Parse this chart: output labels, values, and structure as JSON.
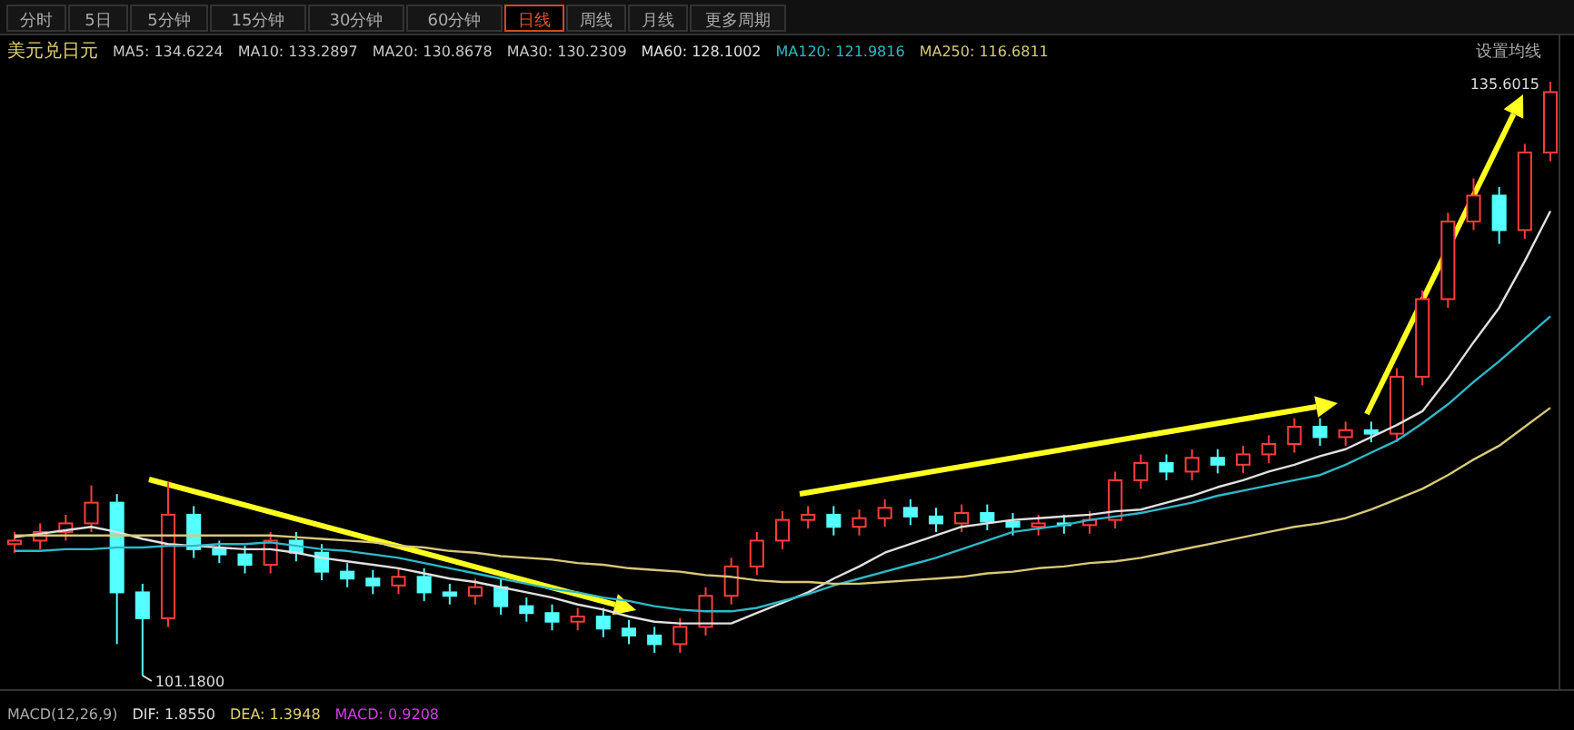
{
  "chart_data": {
    "type": "candlestick",
    "title": "美元兑日元",
    "legend": "top left",
    "annotations": [
      "分时",
      "5日",
      "5分钟",
      "15分钟",
      "30分钟",
      "60分钟",
      "日线",
      "周线",
      "月线",
      "更多周期",
      "MA5: 134.6224",
      "MA10: 133.2897",
      "MA20: 130.8678",
      "MA30: 130.2309",
      "设置均线",
      "MACD(12,26,9)",
      "DIF: 1.8550",
      "DEA: 1.3948",
      "MACD: 0.9208",
      "135.6015",
      "101.1800"
    ],
    "categories": [
      null,
      null,
      null,
      null,
      null,
      null,
      null,
      null,
      null,
      null,
      null,
      null,
      null,
      null,
      null,
      null,
      null,
      null,
      null,
      null,
      null,
      null,
      null,
      null,
      null,
      null,
      null,
      null,
      null,
      null,
      null,
      null,
      null,
      null,
      null,
      null,
      null,
      null,
      null,
      null,
      null,
      null,
      null,
      null,
      null,
      null,
      null,
      null,
      null,
      null,
      null,
      null,
      null,
      null,
      null,
      null,
      null,
      null,
      null,
      null,
      null
    ],
    "ohlc": [
      [
        108.8,
        109.5,
        108.3,
        109.0
      ],
      [
        109.0,
        110.0,
        108.5,
        109.5
      ],
      [
        109.5,
        110.5,
        109.0,
        110.0
      ],
      [
        110.0,
        112.2,
        109.5,
        111.2
      ],
      [
        111.2,
        111.7,
        103.0,
        106.0
      ],
      [
        106.0,
        106.5,
        101.18,
        104.5
      ],
      [
        104.5,
        112.4,
        104.0,
        110.5
      ],
      [
        110.5,
        111.0,
        108.0,
        108.5
      ],
      [
        108.5,
        109.0,
        107.7,
        108.2
      ],
      [
        108.2,
        108.7,
        107.1,
        107.6
      ],
      [
        107.6,
        109.5,
        107.1,
        109.0
      ],
      [
        109.0,
        109.5,
        107.8,
        108.3
      ],
      [
        108.3,
        108.8,
        106.7,
        107.2
      ],
      [
        107.2,
        107.7,
        106.3,
        106.8
      ],
      [
        106.8,
        107.3,
        105.9,
        106.4
      ],
      [
        106.4,
        107.4,
        105.9,
        106.9
      ],
      [
        106.9,
        107.4,
        105.5,
        106.0
      ],
      [
        106.0,
        106.5,
        105.3,
        105.8
      ],
      [
        105.8,
        106.8,
        105.3,
        106.3
      ],
      [
        106.3,
        106.8,
        104.7,
        105.2
      ],
      [
        105.2,
        105.7,
        104.3,
        104.8
      ],
      [
        104.8,
        105.3,
        103.8,
        104.3
      ],
      [
        104.3,
        105.1,
        103.8,
        104.6
      ],
      [
        104.6,
        105.1,
        103.4,
        103.9
      ],
      [
        103.9,
        104.4,
        103.0,
        103.5
      ],
      [
        103.5,
        104.0,
        102.5,
        103.0
      ],
      [
        103.0,
        104.5,
        102.5,
        104.0
      ],
      [
        104.0,
        106.3,
        103.5,
        105.8
      ],
      [
        105.8,
        108.0,
        105.3,
        107.5
      ],
      [
        107.5,
        109.5,
        107.0,
        109.0
      ],
      [
        109.0,
        110.7,
        108.5,
        110.2
      ],
      [
        110.2,
        111.0,
        109.7,
        110.5
      ],
      [
        110.5,
        111.0,
        109.3,
        109.8
      ],
      [
        109.8,
        110.8,
        109.3,
        110.3
      ],
      [
        110.3,
        111.4,
        109.8,
        110.9
      ],
      [
        110.9,
        111.4,
        109.9,
        110.4
      ],
      [
        110.4,
        110.9,
        109.5,
        110.0
      ],
      [
        110.0,
        111.1,
        109.5,
        110.6
      ],
      [
        110.6,
        111.1,
        109.6,
        110.1
      ],
      [
        110.1,
        110.6,
        109.3,
        109.8
      ],
      [
        109.8,
        110.5,
        109.3,
        110.0
      ],
      [
        110.0,
        110.5,
        109.4,
        109.9
      ],
      [
        109.9,
        110.7,
        109.4,
        110.2
      ],
      [
        110.2,
        113.0,
        109.7,
        112.5
      ],
      [
        112.5,
        114.0,
        112.0,
        113.5
      ],
      [
        113.5,
        114.0,
        112.5,
        113.0
      ],
      [
        113.0,
        114.3,
        112.5,
        113.8
      ],
      [
        113.8,
        114.3,
        112.9,
        113.4
      ],
      [
        113.4,
        114.5,
        112.9,
        114.0
      ],
      [
        114.0,
        115.1,
        113.5,
        114.6
      ],
      [
        114.6,
        116.1,
        114.1,
        115.6
      ],
      [
        115.6,
        116.1,
        114.5,
        115.0
      ],
      [
        115.0,
        115.9,
        114.5,
        115.4
      ],
      [
        115.4,
        115.9,
        114.7,
        115.2
      ],
      [
        115.2,
        119.0,
        114.7,
        118.5
      ],
      [
        118.5,
        123.5,
        118.0,
        123.0
      ],
      [
        123.0,
        128.0,
        122.5,
        127.5
      ],
      [
        127.5,
        130.0,
        127.0,
        129.0
      ],
      [
        129.0,
        129.5,
        126.2,
        127.0
      ],
      [
        127.0,
        132.0,
        126.5,
        131.5
      ],
      [
        131.5,
        135.6015,
        131.0,
        135.0
      ]
    ],
    "series": [
      {
        "name": "MA60: 128.1002",
        "type": "line",
        "color": "#e0e0e0",
        "values": [
          109.2,
          109.4,
          109.6,
          109.8,
          109.5,
          109.1,
          108.8,
          108.7,
          108.6,
          108.5,
          108.5,
          108.3,
          108.0,
          107.8,
          107.6,
          107.4,
          107.1,
          106.8,
          106.6,
          106.3,
          106.0,
          105.7,
          105.3,
          105.0,
          104.6,
          104.3,
          104.2,
          104.2,
          104.2,
          104.8,
          105.4,
          106.0,
          106.8,
          107.5,
          108.3,
          108.8,
          109.3,
          109.8,
          110.0,
          110.2,
          110.3,
          110.4,
          110.5,
          110.7,
          110.8,
          111.2,
          111.6,
          112.1,
          112.5,
          113.0,
          113.4,
          113.9,
          114.3,
          115.0,
          115.7,
          116.5,
          118.4,
          120.5,
          122.5,
          125.2,
          128.1
        ]
      },
      {
        "name": "MA120: 121.9816",
        "type": "line",
        "color": "#2fb8c8",
        "values": [
          108.4,
          108.4,
          108.5,
          108.5,
          108.6,
          108.6,
          108.7,
          108.7,
          108.8,
          108.8,
          108.9,
          108.7,
          108.5,
          108.4,
          108.2,
          108.0,
          107.7,
          107.4,
          107.1,
          106.8,
          106.5,
          106.2,
          106.0,
          105.7,
          105.5,
          105.2,
          105.0,
          104.9,
          104.9,
          105.1,
          105.5,
          105.9,
          106.4,
          106.8,
          107.2,
          107.6,
          108.0,
          108.5,
          109.0,
          109.5,
          109.7,
          109.9,
          110.2,
          110.4,
          110.6,
          110.9,
          111.2,
          111.6,
          111.9,
          112.2,
          112.5,
          112.8,
          113.4,
          114.1,
          114.8,
          115.8,
          116.9,
          118.2,
          119.4,
          120.7,
          122.0
        ]
      },
      {
        "name": "MA250: 116.6811",
        "type": "line",
        "color": "#d8c878",
        "values": [
          109.3,
          109.3,
          109.3,
          109.3,
          109.3,
          109.3,
          109.3,
          109.3,
          109.3,
          109.3,
          109.3,
          109.2,
          109.1,
          109.0,
          108.9,
          108.7,
          108.6,
          108.4,
          108.3,
          108.1,
          108.0,
          107.9,
          107.7,
          107.6,
          107.4,
          107.3,
          107.2,
          107.0,
          106.9,
          106.7,
          106.6,
          106.6,
          106.5,
          106.5,
          106.6,
          106.7,
          106.8,
          106.9,
          107.1,
          107.2,
          107.4,
          107.5,
          107.7,
          107.8,
          108.0,
          108.3,
          108.6,
          108.9,
          109.2,
          109.5,
          109.8,
          110.0,
          110.3,
          110.8,
          111.4,
          112.0,
          112.8,
          113.7,
          114.5,
          115.6,
          116.7
        ]
      }
    ]
  }
}
